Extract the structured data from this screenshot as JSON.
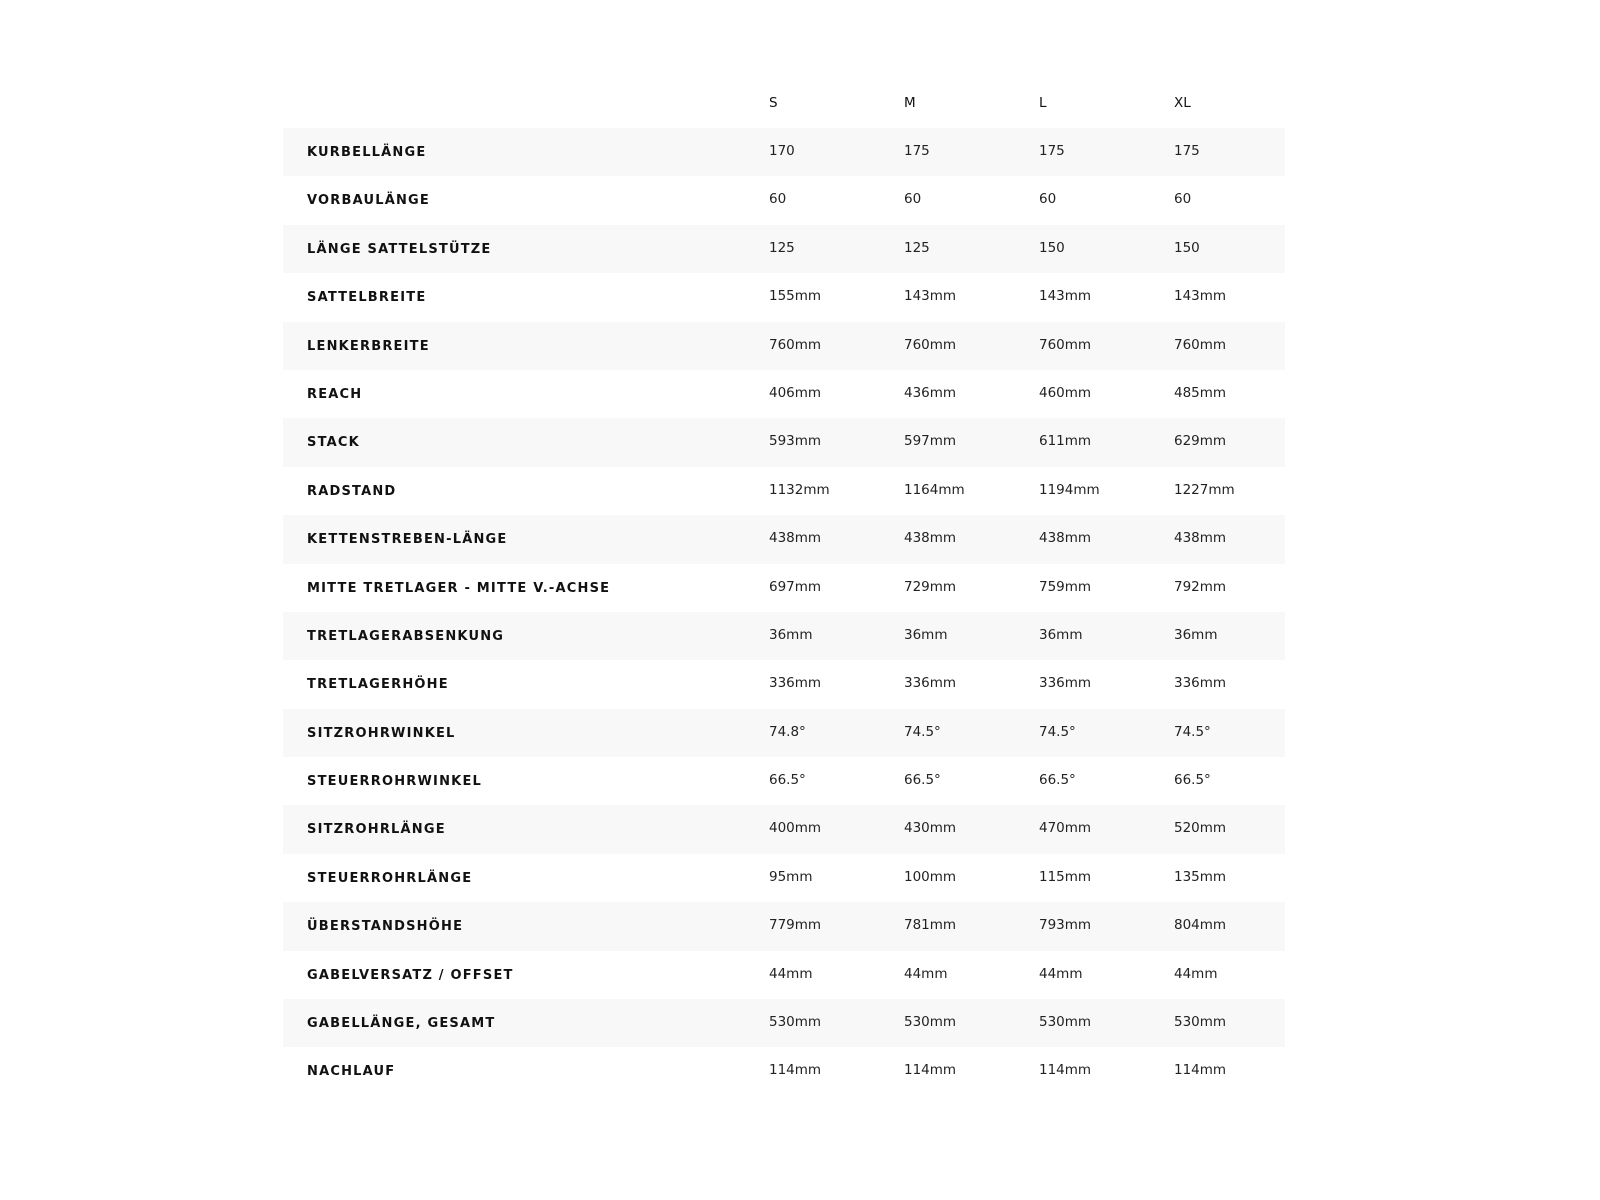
{
  "columns": [
    "S",
    "M",
    "L",
    "XL"
  ],
  "rows": [
    {
      "label": "KURBELLÄNGE",
      "values": [
        "170",
        "175",
        "175",
        "175"
      ]
    },
    {
      "label": "VORBAULÄNGE",
      "values": [
        "60",
        "60",
        "60",
        "60"
      ]
    },
    {
      "label": "LÄNGE SATTELSTÜTZE",
      "values": [
        "125",
        "125",
        "150",
        "150"
      ]
    },
    {
      "label": "SATTELBREITE",
      "values": [
        "155mm",
        "143mm",
        "143mm",
        "143mm"
      ]
    },
    {
      "label": "LENKERBREITE",
      "values": [
        "760mm",
        "760mm",
        "760mm",
        "760mm"
      ]
    },
    {
      "label": "REACH",
      "values": [
        "406mm",
        "436mm",
        "460mm",
        "485mm"
      ]
    },
    {
      "label": "STACK",
      "values": [
        "593mm",
        "597mm",
        "611mm",
        "629mm"
      ]
    },
    {
      "label": "RADSTAND",
      "values": [
        "1132mm",
        "1164mm",
        "1194mm",
        "1227mm"
      ]
    },
    {
      "label": "KETTENSTREBEN-LÄNGE",
      "values": [
        "438mm",
        "438mm",
        "438mm",
        "438mm"
      ]
    },
    {
      "label": "MITTE TRETLAGER - MITTE V.-ACHSE",
      "values": [
        "697mm",
        "729mm",
        "759mm",
        "792mm"
      ]
    },
    {
      "label": "TRETLAGERABSENKUNG",
      "values": [
        "36mm",
        "36mm",
        "36mm",
        "36mm"
      ]
    },
    {
      "label": "TRETLAGERHÖHE",
      "values": [
        "336mm",
        "336mm",
        "336mm",
        "336mm"
      ]
    },
    {
      "label": "SITZROHRWINKEL",
      "values": [
        "74.8°",
        "74.5°",
        "74.5°",
        "74.5°"
      ]
    },
    {
      "label": "STEUERROHRWINKEL",
      "values": [
        "66.5°",
        "66.5°",
        "66.5°",
        "66.5°"
      ]
    },
    {
      "label": "SITZROHRLÄNGE",
      "values": [
        "400mm",
        "430mm",
        "470mm",
        "520mm"
      ]
    },
    {
      "label": "STEUERROHRLÄNGE",
      "values": [
        "95mm",
        "100mm",
        "115mm",
        "135mm"
      ]
    },
    {
      "label": "ÜBERSTANDSHÖHE",
      "values": [
        "779mm",
        "781mm",
        "793mm",
        "804mm"
      ]
    },
    {
      "label": "GABELVERSATZ / OFFSET",
      "values": [
        "44mm",
        "44mm",
        "44mm",
        "44mm"
      ]
    },
    {
      "label": "GABELLÄNGE, GESAMT",
      "values": [
        "530mm",
        "530mm",
        "530mm",
        "530mm"
      ]
    },
    {
      "label": "NACHLAUF",
      "values": [
        "114mm",
        "114mm",
        "114mm",
        "114mm"
      ]
    }
  ],
  "colors": {
    "stripe": "#f8f8f8",
    "text": "#111111"
  }
}
